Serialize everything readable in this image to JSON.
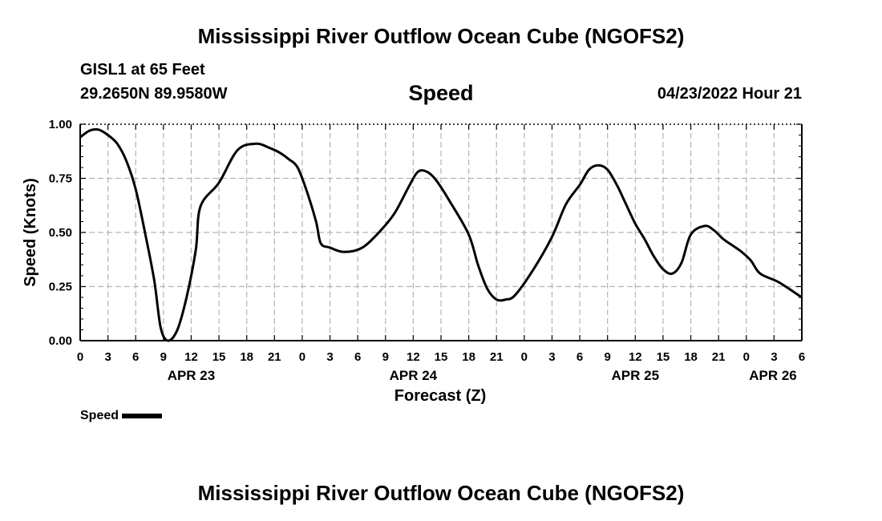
{
  "header": {
    "title": "Mississippi River Outflow Ocean Cube (NGOFS2)",
    "station": "GISL1 at 65 Feet",
    "coords": "29.2650N  89.9580W",
    "variable": "Speed",
    "timestamp": "04/23/2022 Hour 21"
  },
  "footer": {
    "title": "Mississippi River Outflow Ocean Cube (NGOFS2)"
  },
  "chart_data": {
    "type": "line",
    "title": "Speed",
    "xlabel": "Forecast (Z)",
    "ylabel": "Speed (Knots)",
    "xlim": [
      0,
      78
    ],
    "ylim": [
      0,
      1.0
    ],
    "grid": true,
    "legend_position": "bottom-left",
    "yticks": [
      "0.00",
      "0.25",
      "0.50",
      "0.75",
      "1.00"
    ],
    "xtick_labels": [
      "0",
      "3",
      "6",
      "9",
      "12",
      "15",
      "18",
      "21",
      "0",
      "3",
      "6",
      "9",
      "12",
      "15",
      "18",
      "21",
      "0",
      "3",
      "6",
      "9",
      "12",
      "15",
      "18",
      "21",
      "0",
      "3",
      "6"
    ],
    "day_labels": [
      {
        "label": "APR 23",
        "hour": 12
      },
      {
        "label": "APR 24",
        "hour": 36
      },
      {
        "label": "APR 25",
        "hour": 60
      },
      {
        "label": "APR 26",
        "hour": 78
      }
    ],
    "series": [
      {
        "name": "Speed",
        "color": "#000000",
        "x": [
          0,
          1,
          2,
          3,
          4,
          5,
          6,
          7,
          8,
          8.7,
          9.5,
          10.5,
          11.5,
          12.5,
          13,
          15,
          17,
          19,
          20.5,
          21.5,
          22.5,
          23.5,
          24.5,
          25.5,
          26,
          27,
          28.5,
          30.5,
          32.5,
          34,
          35.5,
          36.5,
          37.5,
          38.5,
          40,
          42,
          43,
          44,
          45,
          46,
          47,
          49,
          51,
          52.5,
          54,
          55,
          56,
          57,
          58,
          59,
          60,
          61,
          62,
          63,
          64,
          65,
          66,
          67.5,
          68.5,
          69.5,
          70.5,
          71.5,
          72.5,
          73.5,
          75.5,
          78
        ],
        "values": [
          0.94,
          0.97,
          0.975,
          0.95,
          0.91,
          0.83,
          0.7,
          0.5,
          0.28,
          0.06,
          0.0,
          0.05,
          0.2,
          0.42,
          0.62,
          0.73,
          0.88,
          0.91,
          0.89,
          0.87,
          0.84,
          0.8,
          0.69,
          0.55,
          0.45,
          0.43,
          0.41,
          0.43,
          0.51,
          0.59,
          0.71,
          0.78,
          0.78,
          0.74,
          0.64,
          0.49,
          0.35,
          0.24,
          0.19,
          0.19,
          0.21,
          0.33,
          0.48,
          0.63,
          0.72,
          0.79,
          0.81,
          0.79,
          0.72,
          0.63,
          0.54,
          0.47,
          0.39,
          0.33,
          0.31,
          0.36,
          0.49,
          0.53,
          0.51,
          0.47,
          0.44,
          0.41,
          0.37,
          0.31,
          0.27,
          0.2
        ]
      }
    ]
  },
  "legend": {
    "label": "Speed"
  }
}
